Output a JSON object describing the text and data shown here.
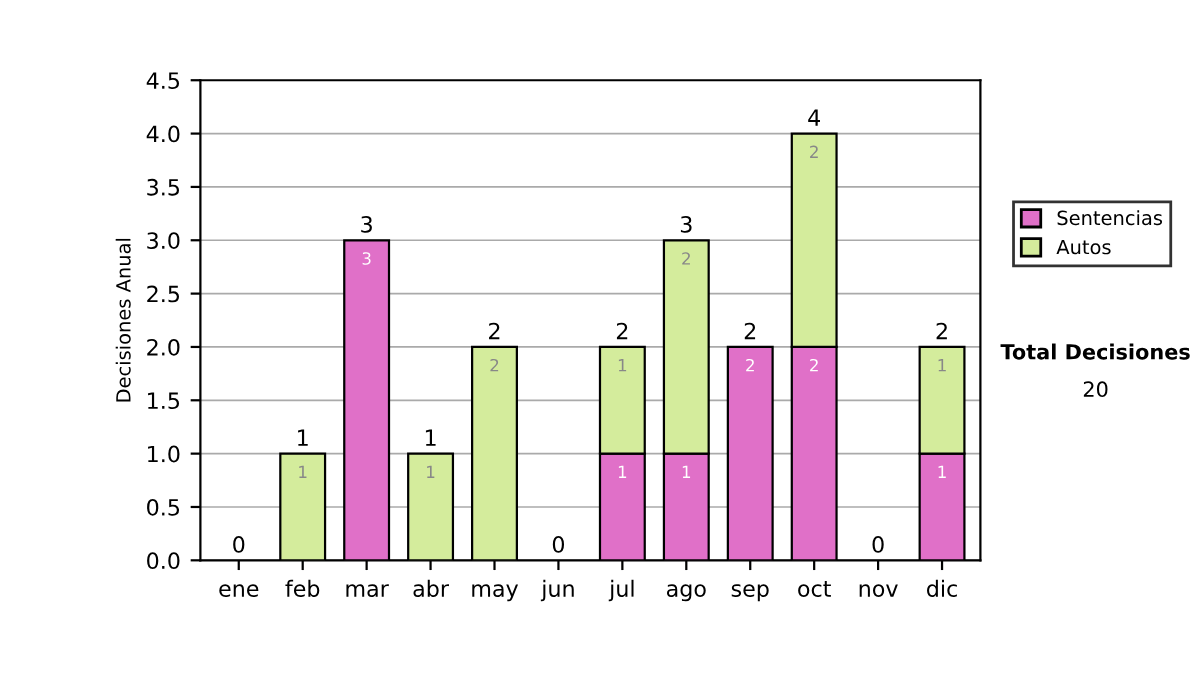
{
  "chart_data": {
    "type": "bar",
    "stacked": true,
    "ylabel": "Decisiones Anual",
    "categories": [
      "ene",
      "feb",
      "mar",
      "abr",
      "may",
      "jun",
      "jul",
      "ago",
      "sep",
      "oct",
      "nov",
      "dic"
    ],
    "series": [
      {
        "name": "Sentencias",
        "color": "#e070c8",
        "values": [
          0,
          0,
          3,
          0,
          0,
          0,
          1,
          1,
          2,
          2,
          0,
          1
        ],
        "value_labels": [
          null,
          null,
          "3",
          null,
          null,
          null,
          "1",
          "1",
          "2",
          "2",
          null,
          "1"
        ]
      },
      {
        "name": "Autos",
        "color": "#d4ec9c",
        "values": [
          0,
          1,
          0,
          1,
          2,
          0,
          1,
          2,
          0,
          2,
          0,
          1
        ],
        "value_labels": [
          null,
          "1",
          null,
          "1",
          "2",
          null,
          "1",
          "2",
          null,
          "2",
          null,
          "1"
        ]
      }
    ],
    "totals": [
      "0",
      "1",
      "3",
      "1",
      "2",
      "0",
      "2",
      "3",
      "2",
      "4",
      "0",
      "2"
    ],
    "ylim": [
      0,
      4.5
    ],
    "yticks": [
      {
        "value": 0,
        "label": "0.0"
      },
      {
        "value": 0.5,
        "label": "0.5"
      },
      {
        "value": 1,
        "label": "1.0"
      },
      {
        "value": 1.5,
        "label": "1.5"
      },
      {
        "value": 2,
        "label": "2.0"
      },
      {
        "value": 2.5,
        "label": "2.5"
      },
      {
        "value": 3,
        "label": "3.0"
      },
      {
        "value": 3.5,
        "label": "3.5"
      },
      {
        "value": 4,
        "label": "4.0"
      },
      {
        "value": 4.5,
        "label": "4.5"
      }
    ],
    "grid": "y",
    "legend": "right",
    "annotations": [
      "Total Decisiones",
      "20"
    ]
  }
}
